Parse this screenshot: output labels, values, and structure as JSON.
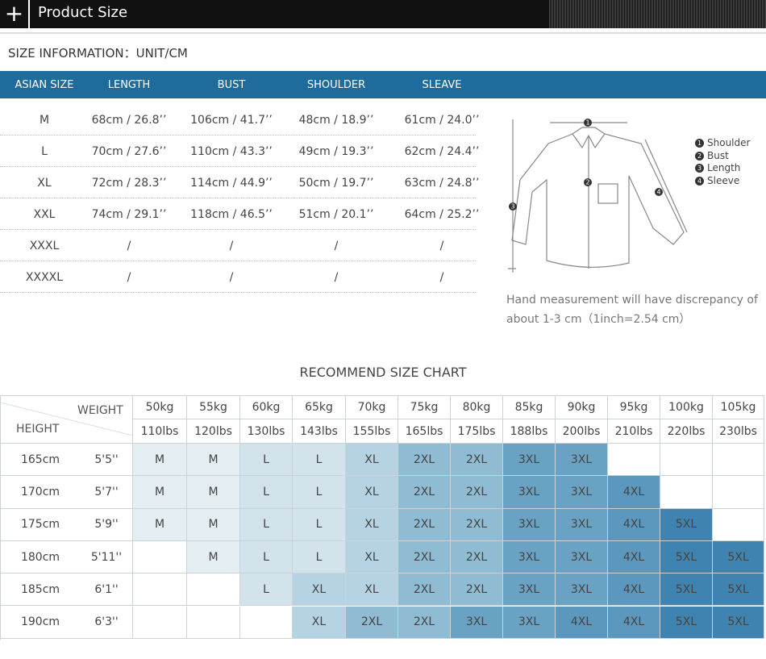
{
  "header": {
    "title": "Product Size"
  },
  "size_info": {
    "label": "SIZE INFORMATION：UNIT/CM"
  },
  "size_table": {
    "columns": [
      "ASIAN SIZE",
      "LENGTH",
      "BUST",
      "SHOULDER",
      "SLEAVE"
    ],
    "rows": [
      [
        "M",
        "68cm / 26.8’’",
        "106cm / 41.7’’",
        "48cm / 18.9’’",
        "61cm / 24.0’’"
      ],
      [
        "L",
        "70cm / 27.6’’",
        "110cm / 43.3’’",
        "49cm / 19.3’’",
        "62cm / 24.4’’"
      ],
      [
        "XL",
        "72cm / 28.3’’",
        "114cm / 44.9’’",
        "50cm / 19.7’’",
        "63cm / 24.8’’"
      ],
      [
        "XXL",
        "74cm / 29.1’’",
        "118cm / 46.5’’",
        "51cm / 20.1’’",
        "64cm / 25.2’’"
      ],
      [
        "XXXL",
        "/",
        "/",
        "/",
        "/"
      ],
      [
        "XXXXL",
        "/",
        "/",
        "/",
        "/"
      ]
    ]
  },
  "diagram": {
    "legend": [
      {
        "number": "1",
        "label": "Shoulder"
      },
      {
        "number": "2",
        "label": "Bust"
      },
      {
        "number": "3",
        "label": "Length"
      },
      {
        "number": "4",
        "label": "Sleeve"
      }
    ],
    "note": [
      "Hand measurement will have discrepancy of",
      "about 1-3 cm（1inch=2.54 cm）"
    ]
  },
  "recommend": {
    "title": "RECOMMEND SIZE CHART",
    "weight_label": "WEIGHT",
    "height_label": "HEIGHT",
    "weights_kg": [
      "50kg",
      "55kg",
      "60kg",
      "65kg",
      "70kg",
      "75kg",
      "80kg",
      "85kg",
      "90kg",
      "95kg",
      "100kg",
      "105kg"
    ],
    "weights_lbs": [
      "110lbs",
      "120lbs",
      "130lbs",
      "143lbs",
      "155lbs",
      "165lbs",
      "175lbs",
      "188lbs",
      "200lbs",
      "210lbs",
      "220lbs",
      "230lbs"
    ],
    "rows": [
      {
        "cm": "165cm",
        "ft": "5'5''",
        "sizes": [
          "M",
          "M",
          "L",
          "L",
          "XL",
          "2XL",
          "2XL",
          "3XL",
          "3XL",
          null,
          null,
          null
        ]
      },
      {
        "cm": "170cm",
        "ft": "5'7''",
        "sizes": [
          "M",
          "M",
          "L",
          "L",
          "XL",
          "2XL",
          "2XL",
          "3XL",
          "3XL",
          "4XL",
          null,
          null
        ]
      },
      {
        "cm": "175cm",
        "ft": "5'9''",
        "sizes": [
          "M",
          "M",
          "L",
          "L",
          "XL",
          "2XL",
          "2XL",
          "3XL",
          "3XL",
          "4XL",
          "5XL",
          null
        ]
      },
      {
        "cm": "180cm",
        "ft": "5'11''",
        "sizes": [
          null,
          "M",
          "L",
          "L",
          "XL",
          "2XL",
          "2XL",
          "3XL",
          "3XL",
          "4XL",
          "5XL",
          "5XL"
        ]
      },
      {
        "cm": "185cm",
        "ft": "6'1''",
        "sizes": [
          null,
          null,
          "L",
          "XL",
          "XL",
          "2XL",
          "2XL",
          "3XL",
          "3XL",
          "4XL",
          "5XL",
          "5XL"
        ]
      },
      {
        "cm": "190cm",
        "ft": "6'3''",
        "sizes": [
          null,
          null,
          null,
          "XL",
          "2XL",
          "2XL",
          "3XL",
          "3XL",
          "4XL",
          "4XL",
          "5XL",
          "5XL"
        ]
      }
    ]
  }
}
